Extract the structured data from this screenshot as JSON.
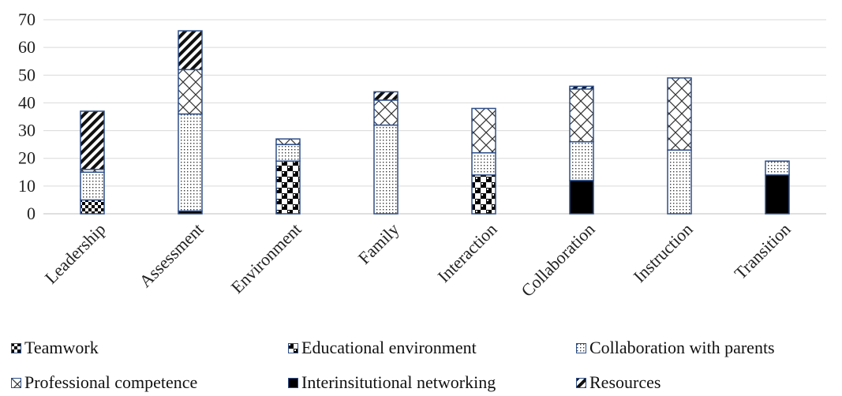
{
  "chart_data": {
    "type": "bar",
    "stacked": true,
    "categories": [
      "Leadership",
      "Assessment",
      "Environment",
      "Family",
      "Interaction",
      "Collaboration",
      "Instruction",
      "Transition"
    ],
    "series": [
      {
        "name": "Teamwork",
        "values": [
          5,
          0,
          0,
          0,
          0,
          0,
          0,
          0
        ],
        "pattern": "checker-small",
        "color": "#000000"
      },
      {
        "name": "Educational environment",
        "values": [
          0,
          0,
          19,
          0,
          14,
          0,
          0,
          0
        ],
        "pattern": "checker-large",
        "color": "#000000"
      },
      {
        "name": "Interinsitutional networking",
        "values": [
          0,
          1,
          0,
          0,
          0,
          12,
          0,
          14
        ],
        "pattern": "solid",
        "color": "#000000"
      },
      {
        "name": "Collaboration with parents",
        "values": [
          10,
          35,
          6,
          32,
          8,
          14,
          23,
          5
        ],
        "pattern": "dots",
        "color": "#1f3864"
      },
      {
        "name": "Professional competence",
        "values": [
          1,
          16,
          2,
          9,
          16,
          19,
          26,
          0
        ],
        "pattern": "crosshatch",
        "color": "#1f3864"
      },
      {
        "name": "Resources",
        "values": [
          21,
          14,
          0,
          3,
          0,
          1,
          0,
          0
        ],
        "pattern": "diagonal",
        "color": "#000000"
      }
    ],
    "ylim": [
      0,
      70
    ],
    "yticks": [
      "0",
      "10",
      "20",
      "30",
      "40",
      "50",
      "60",
      "70"
    ],
    "grid": true,
    "legend_position": "bottom",
    "bar_outline_color": "#2e4f8a"
  },
  "legend": [
    {
      "label": "Teamwork",
      "pattern": "checker-small"
    },
    {
      "label": "Educational environment",
      "pattern": "checker-large"
    },
    {
      "label": "Collaboration with parents",
      "pattern": "dots"
    },
    {
      "label": "Professional competence",
      "pattern": "crosshatch"
    },
    {
      "label": "Interinsitutional networking",
      "pattern": "solid"
    },
    {
      "label": "Resources",
      "pattern": "diagonal"
    }
  ]
}
